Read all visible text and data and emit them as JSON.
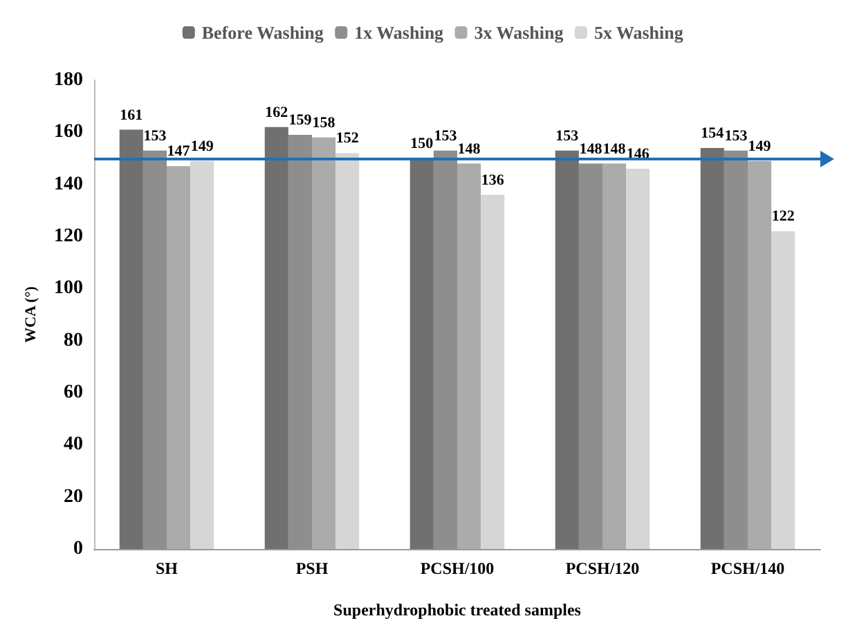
{
  "chart_data": {
    "type": "bar",
    "xlabel": "Superhydrophobic treated samples",
    "ylabel": "WCA (°)",
    "categories": [
      "SH",
      "PSH",
      "PCSH/100",
      "PCSH/120",
      "PCSH/140"
    ],
    "series": [
      {
        "name": "Before Washing",
        "color": "#707070",
        "values": [
          161,
          162,
          150,
          153,
          154
        ]
      },
      {
        "name": "1x Washing",
        "color": "#8e8e8e",
        "values": [
          153,
          159,
          153,
          148,
          153
        ]
      },
      {
        "name": "3x Washing",
        "color": "#ababab",
        "values": [
          147,
          158,
          148,
          148,
          149
        ]
      },
      {
        "name": "5x Washing",
        "color": "#d6d6d6",
        "values": [
          149,
          152,
          136,
          146,
          122
        ]
      }
    ],
    "ylim": [
      0,
      180
    ],
    "yticks": [
      0,
      20,
      40,
      60,
      80,
      100,
      120,
      140,
      160,
      180
    ],
    "ref_lines": [
      {
        "axis": "y",
        "value": 150,
        "color": "#1f6fb8"
      }
    ],
    "data_labels": true,
    "grid": false,
    "legend": "top"
  }
}
